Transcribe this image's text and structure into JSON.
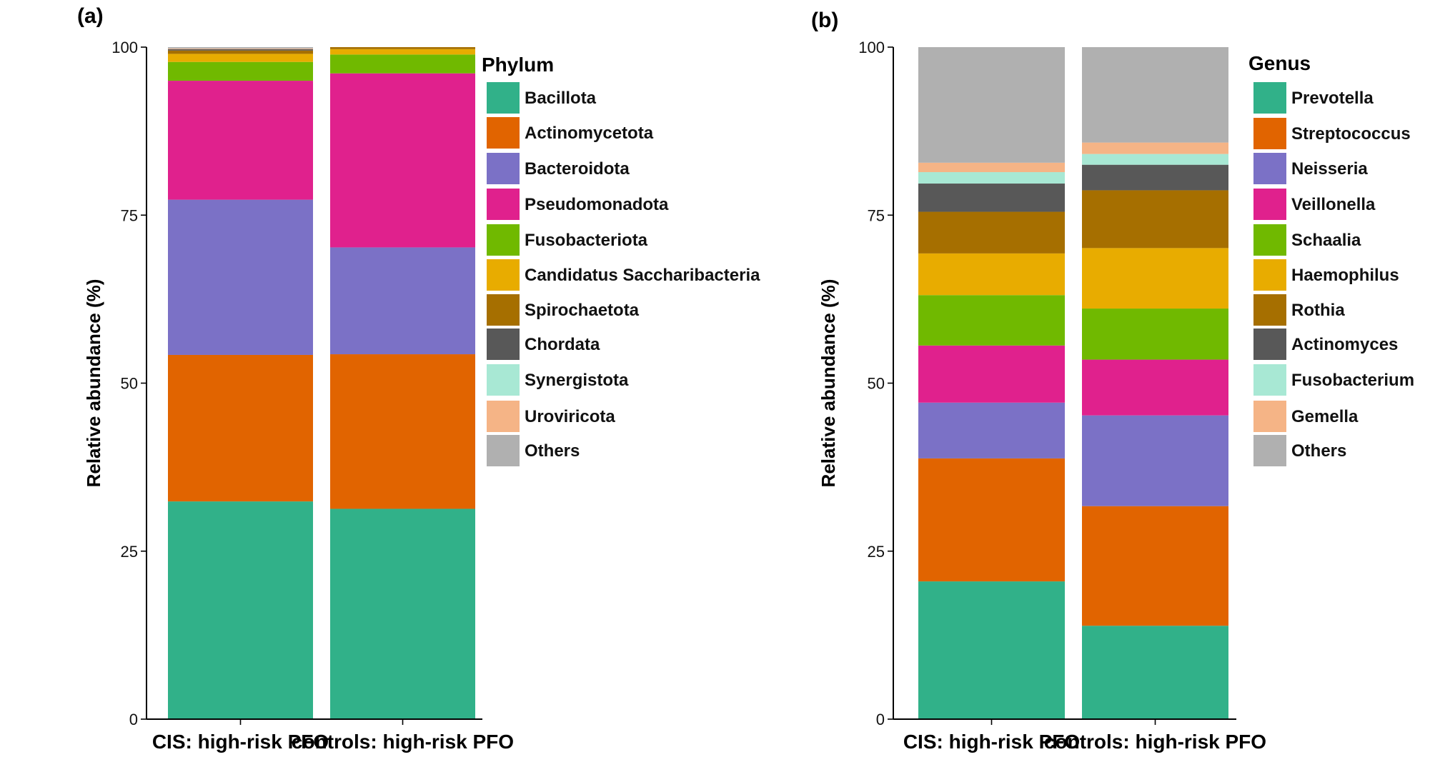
{
  "chart_data": [
    {
      "type": "bar",
      "stacked": true,
      "panel_label": "(a)",
      "categories": [
        "CIS: high-risk PFO",
        "controls: high-risk PFO"
      ],
      "ylabel": "Relative abundance (%)",
      "ylim": [
        0,
        100
      ],
      "yticks": [
        0,
        25,
        50,
        75,
        100
      ],
      "legend_title": "Phylum",
      "legend_position": "right",
      "series": [
        {
          "name": "Bacillota",
          "color": "#31b189",
          "values": [
            32.4,
            31.3
          ]
        },
        {
          "name": "Actinomycetota",
          "color": "#e16400",
          "values": [
            21.8,
            23.0
          ]
        },
        {
          "name": "Bacteroidota",
          "color": "#7b71c6",
          "values": [
            23.1,
            15.9
          ]
        },
        {
          "name": "Pseudomonadota",
          "color": "#e0218d",
          "values": [
            17.7,
            25.9
          ]
        },
        {
          "name": "Fusobacteriota",
          "color": "#70b900",
          "values": [
            2.8,
            2.8
          ]
        },
        {
          "name": "Candidatus Saccharibacteria",
          "color": "#e8ac00",
          "values": [
            1.2,
            0.8
          ]
        },
        {
          "name": "Spirochaetota",
          "color": "#a66f00",
          "values": [
            0.5,
            0.3
          ]
        },
        {
          "name": "Chordata",
          "color": "#585858",
          "values": [
            0.2,
            0.0
          ]
        },
        {
          "name": "Synergistota",
          "color": "#a8e8d4",
          "values": [
            0.0,
            0.0
          ]
        },
        {
          "name": "Uroviricota",
          "color": "#f5b486",
          "values": [
            0.1,
            0.0
          ]
        },
        {
          "name": "Others",
          "color": "#b0b0b0",
          "values": [
            0.2,
            0.0
          ]
        }
      ]
    },
    {
      "type": "bar",
      "stacked": true,
      "panel_label": "(b)",
      "categories": [
        "CIS: high-risk PFO",
        "controls: high-risk PFO"
      ],
      "ylabel": "Relative abundance (%)",
      "ylim": [
        0,
        100
      ],
      "yticks": [
        0,
        25,
        50,
        75,
        100
      ],
      "legend_title": "Genus",
      "legend_position": "right",
      "series": [
        {
          "name": "Prevotella",
          "color": "#31b189",
          "values": [
            20.5,
            13.9
          ]
        },
        {
          "name": "Streptococcus",
          "color": "#e16400",
          "values": [
            18.3,
            17.8
          ]
        },
        {
          "name": "Neisseria",
          "color": "#7b71c6",
          "values": [
            8.3,
            13.5
          ]
        },
        {
          "name": "Veillonella",
          "color": "#e0218d",
          "values": [
            8.5,
            8.3
          ]
        },
        {
          "name": "Schaalia",
          "color": "#70b900",
          "values": [
            7.5,
            7.6
          ]
        },
        {
          "name": "Haemophilus",
          "color": "#e8ac00",
          "values": [
            6.2,
            9.0
          ]
        },
        {
          "name": "Rothia",
          "color": "#a66f00",
          "values": [
            6.2,
            8.6
          ]
        },
        {
          "name": "Actinomyces",
          "color": "#585858",
          "values": [
            4.2,
            3.8
          ]
        },
        {
          "name": "Fusobacterium",
          "color": "#a8e8d4",
          "values": [
            1.7,
            1.6
          ]
        },
        {
          "name": "Gemella",
          "color": "#f5b486",
          "values": [
            1.4,
            1.7
          ]
        },
        {
          "name": "Others",
          "color": "#b0b0b0",
          "values": [
            17.2,
            14.2
          ]
        }
      ]
    }
  ]
}
